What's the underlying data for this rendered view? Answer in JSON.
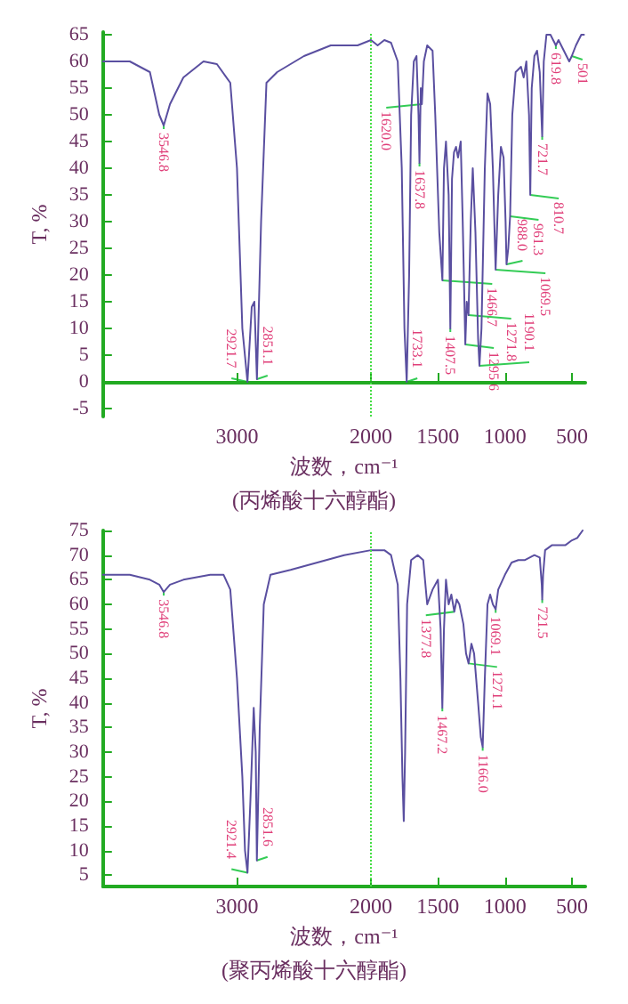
{
  "chart_data": [
    {
      "type": "line",
      "title": "(丙烯酸十六醇酯)",
      "xlabel": "波数，cm⁻¹",
      "ylabel": "T, %",
      "color": "#5a4fa0",
      "marker": "none",
      "grid": false,
      "x": [
        4000,
        3800,
        3650,
        3580,
        3546.8,
        3500,
        3400,
        3250,
        3150,
        3050,
        3000,
        2960,
        2921.7,
        2890,
        2870,
        2851.1,
        2820,
        2780,
        2700,
        2500,
        2300,
        2100,
        2000,
        1950,
        1900,
        1850,
        1800,
        1770,
        1750,
        1733.1,
        1715,
        1700,
        1680,
        1660,
        1645,
        1637.8,
        1628,
        1620,
        1605,
        1580,
        1540,
        1520,
        1490,
        1466.7,
        1455,
        1440,
        1420,
        1407.5,
        1395,
        1380,
        1365,
        1350,
        1330,
        1315,
        1295.6,
        1285,
        1271.8,
        1255,
        1240,
        1220,
        1200,
        1190.1,
        1175,
        1150,
        1130,
        1110,
        1090,
        1069.5,
        1050,
        1030,
        1010,
        995,
        988,
        975,
        961.3,
        945,
        920,
        880,
        860,
        840,
        820,
        810.7,
        800,
        780,
        760,
        740,
        721.7,
        710,
        690,
        660,
        640,
        619.8,
        600,
        560,
        520,
        501,
        470,
        430,
        410
      ],
      "values": [
        60,
        60,
        58,
        50,
        48,
        52,
        57,
        60,
        59.5,
        56,
        40,
        10,
        0,
        14,
        15,
        0.5,
        30,
        56,
        58,
        61,
        63,
        63,
        64,
        63,
        64,
        63.5,
        60,
        40,
        10,
        0,
        20,
        50,
        60,
        61,
        50,
        41,
        55,
        52,
        60,
        63,
        62,
        50,
        28,
        19,
        40,
        45,
        35,
        10,
        38,
        43,
        44,
        42,
        45,
        30,
        7,
        15,
        12.5,
        30,
        40,
        28,
        8,
        3,
        10,
        40,
        54,
        52,
        40,
        21,
        35,
        44,
        42,
        30,
        22,
        25,
        31,
        50,
        58,
        59,
        57,
        60,
        50,
        35,
        55,
        61,
        62,
        58,
        46,
        60,
        65,
        65,
        64,
        63,
        64,
        62,
        60,
        61,
        63,
        65,
        65
      ],
      "xlim": [
        4000,
        400
      ],
      "ylim": [
        -6.5,
        65.5
      ],
      "xticks": [
        3000,
        2000,
        1500,
        1000,
        500
      ],
      "yticks": [
        -5,
        0,
        5,
        10,
        15,
        20,
        25,
        30,
        35,
        40,
        45,
        50,
        55,
        60,
        65
      ],
      "ref_lines": [
        {
          "axis": "x",
          "value": 2000,
          "color": "#44dd44",
          "line_style": "dotted"
        }
      ],
      "annotations": [
        {
          "text": "3546.8",
          "x": 3546.8,
          "y": 48
        },
        {
          "text": "2921.7",
          "x": 2921.7,
          "y": 0
        },
        {
          "text": "2851.1",
          "x": 2851.1,
          "y": 0.5
        },
        {
          "text": "1733.1",
          "x": 1733.1,
          "y": 0
        },
        {
          "text": "1637.8",
          "x": 1637.8,
          "y": 41
        },
        {
          "text": "1620.0",
          "x": 1620,
          "y": 52
        },
        {
          "text": "1466.7",
          "x": 1466.7,
          "y": 19
        },
        {
          "text": "1407.5",
          "x": 1407.5,
          "y": 10
        },
        {
          "text": "1295.6",
          "x": 1295.6,
          "y": 7
        },
        {
          "text": "1271.8",
          "x": 1271.8,
          "y": 12.5
        },
        {
          "text": "1190.1",
          "x": 1190.1,
          "y": 3
        },
        {
          "text": "1069.5",
          "x": 1069.5,
          "y": 21
        },
        {
          "text": "988.0",
          "x": 988,
          "y": 22
        },
        {
          "text": "961.3",
          "x": 961.3,
          "y": 31
        },
        {
          "text": "810.7",
          "x": 810.7,
          "y": 35
        },
        {
          "text": "721.7",
          "x": 721.7,
          "y": 46
        },
        {
          "text": "619.8",
          "x": 619.8,
          "y": 63
        },
        {
          "text": "501",
          "x": 501,
          "y": 61
        }
      ]
    },
    {
      "type": "line",
      "title": "(聚丙烯酸十六醇酯)",
      "xlabel": "波数，cm⁻¹",
      "ylabel": "T, %",
      "color": "#5a4fa0",
      "marker": "none",
      "grid": false,
      "x": [
        4000,
        3800,
        3650,
        3580,
        3546.8,
        3500,
        3400,
        3200,
        3100,
        3050,
        3000,
        2960,
        2940,
        2921.4,
        2900,
        2875,
        2860,
        2851.6,
        2830,
        2800,
        2750,
        2600,
        2400,
        2200,
        2000,
        1900,
        1850,
        1800,
        1780,
        1765,
        1755,
        1745,
        1730,
        1700,
        1650,
        1610,
        1580,
        1540,
        1500,
        1480,
        1467.2,
        1455,
        1440,
        1420,
        1400,
        1377.8,
        1360,
        1340,
        1310,
        1290,
        1271.1,
        1250,
        1230,
        1200,
        1180,
        1166,
        1150,
        1130,
        1110,
        1090,
        1069.1,
        1050,
        1000,
        950,
        900,
        850,
        780,
        740,
        725,
        721.5,
        715,
        700,
        650,
        600,
        550,
        500,
        460,
        420
      ],
      "values": [
        66,
        66,
        65,
        64,
        62.5,
        64,
        65,
        66,
        66,
        63,
        45,
        25,
        10,
        5.5,
        20,
        39,
        30,
        8,
        35,
        60,
        66,
        67,
        68.5,
        70,
        71,
        71,
        70,
        64,
        45,
        25,
        16,
        30,
        60,
        69,
        70,
        69,
        60,
        63,
        65,
        55,
        39,
        55,
        65,
        60,
        62,
        58.5,
        61,
        60,
        56,
        50,
        48,
        52,
        50,
        40,
        33,
        31,
        45,
        60,
        62,
        60,
        59,
        63,
        66,
        68.5,
        69,
        69,
        70,
        69.5,
        64,
        61,
        66,
        71,
        72,
        72,
        72,
        73,
        73.5,
        75
      ],
      "xlim": [
        4000,
        400
      ],
      "ylim": [
        2.7,
        75
      ],
      "xticks": [
        3000,
        2000,
        1500,
        1000,
        500
      ],
      "yticks": [
        5,
        10,
        15,
        20,
        25,
        30,
        35,
        40,
        45,
        50,
        55,
        60,
        65,
        70,
        75
      ],
      "ref_lines": [
        {
          "axis": "x",
          "value": 2000,
          "color": "#44dd44",
          "line_style": "dotted"
        }
      ],
      "annotations": [
        {
          "text": "3546.8",
          "x": 3546.8,
          "y": 62.5
        },
        {
          "text": "2921.4",
          "x": 2921.4,
          "y": 5.5
        },
        {
          "text": "2851.6",
          "x": 2851.6,
          "y": 8
        },
        {
          "text": "1467.2",
          "x": 1467.2,
          "y": 39
        },
        {
          "text": "1377.8",
          "x": 1377.8,
          "y": 58.5
        },
        {
          "text": "1271.1",
          "x": 1271.1,
          "y": 48
        },
        {
          "text": "1166.0",
          "x": 1166,
          "y": 31
        },
        {
          "text": "1069.1",
          "x": 1069.1,
          "y": 59
        },
        {
          "text": "721.5",
          "x": 721.5,
          "y": 61
        }
      ]
    }
  ]
}
